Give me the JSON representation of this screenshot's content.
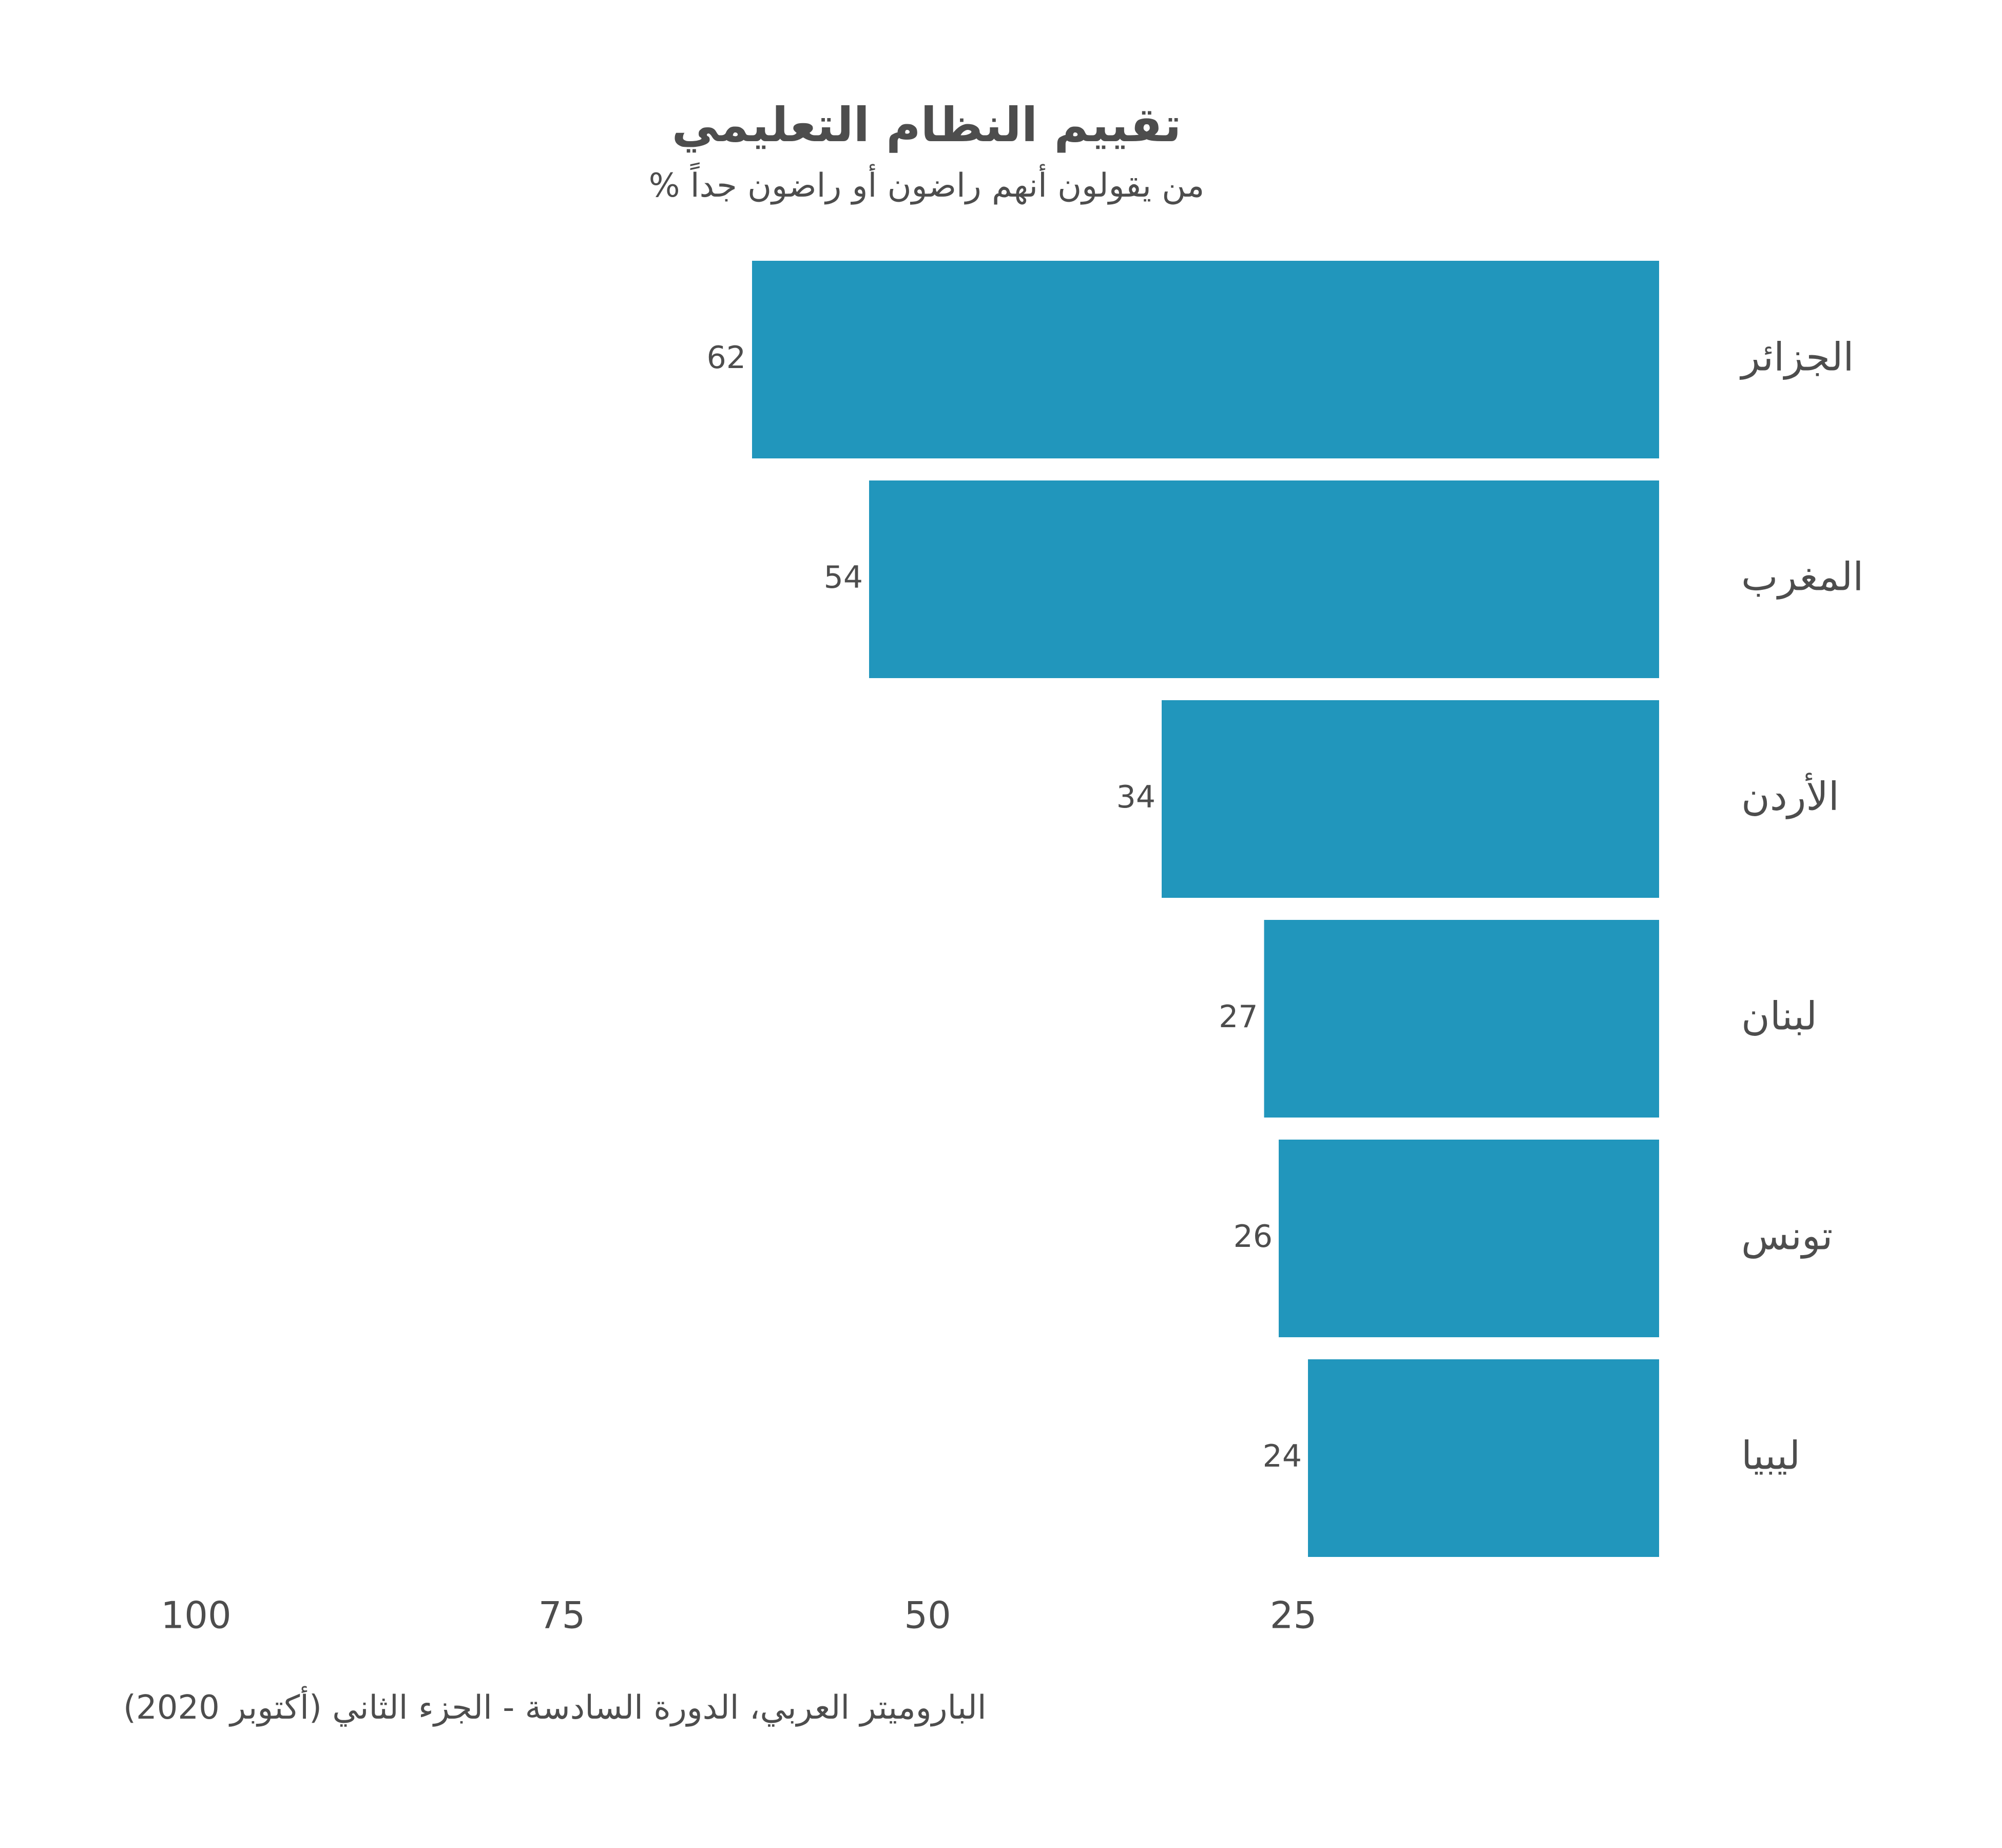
{
  "title": "تقييم النظام التعليمي",
  "subtitle": "% من يقولون أنهم راضون أو راضون جداً",
  "source": "الباروميتر العربي، الدورة السادسة - الجزء الثاني (أكتوبر 2020)",
  "chart_data": {
    "type": "bar",
    "orientation": "horizontal",
    "direction": "right-to-left",
    "title": "تقييم النظام التعليمي",
    "subtitle": "% من يقولون أنهم راضون أو راضون جداً",
    "categories": [
      "الجزائر",
      "المغرب",
      "الأردن",
      "لبنان",
      "تونس",
      "ليبيا"
    ],
    "values": [
      62,
      54,
      34,
      27,
      26,
      24
    ],
    "value_labels": [
      "62",
      "54",
      "34",
      "27",
      "26",
      "24"
    ],
    "xticks": [
      100,
      75,
      50,
      25
    ],
    "xtick_labels": [
      "100",
      "75",
      "50",
      "25"
    ],
    "xlim": [
      0,
      100
    ],
    "bar_color": "#2196bc",
    "grid": false,
    "legend": false
  }
}
